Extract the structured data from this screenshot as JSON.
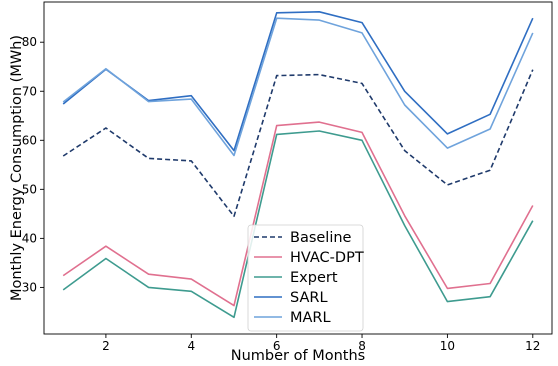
{
  "chart_data": {
    "type": "line",
    "title": "",
    "xlabel": "Number of Months",
    "ylabel": "Monthly Energy Consumption (MWh)",
    "xlim": [
      0.55,
      12.45
    ],
    "ylim": [
      20.5,
      88.2
    ],
    "x_ticks": [
      2,
      4,
      6,
      8,
      10,
      12
    ],
    "y_ticks": [
      30,
      40,
      50,
      60,
      70,
      80
    ],
    "grid": false,
    "legend_position": "lower-center",
    "x": [
      1,
      2,
      3,
      4,
      5,
      6,
      7,
      8,
      9,
      10,
      11,
      12
    ],
    "series": [
      {
        "name": "Baseline",
        "color": "#1f3a6b",
        "dash": "dashed",
        "values": [
          56.8,
          62.5,
          56.3,
          55.8,
          44.5,
          73.2,
          73.4,
          71.6,
          57.9,
          50.9,
          53.9,
          74.4
        ]
      },
      {
        "name": "HVAC-DPT",
        "color": "#e0708f",
        "dash": "solid",
        "values": [
          32.4,
          38.4,
          32.7,
          31.7,
          26.3,
          63.0,
          63.7,
          61.6,
          44.6,
          29.8,
          30.8,
          46.7
        ]
      },
      {
        "name": "Expert",
        "color": "#3e9b8f",
        "dash": "solid",
        "values": [
          29.5,
          35.9,
          30.0,
          29.2,
          23.9,
          61.2,
          61.9,
          60.0,
          42.6,
          27.1,
          28.1,
          43.6
        ]
      },
      {
        "name": "SARL",
        "color": "#2f6ec2",
        "dash": "solid",
        "values": [
          67.4,
          74.5,
          68.1,
          69.1,
          57.9,
          86.0,
          86.2,
          84.0,
          70.0,
          61.3,
          65.3,
          84.9
        ]
      },
      {
        "name": "MARL",
        "color": "#6fa3dc",
        "dash": "solid",
        "values": [
          67.8,
          74.6,
          67.9,
          68.4,
          56.9,
          84.9,
          84.5,
          81.9,
          67.2,
          58.4,
          62.3,
          81.9
        ]
      }
    ]
  }
}
